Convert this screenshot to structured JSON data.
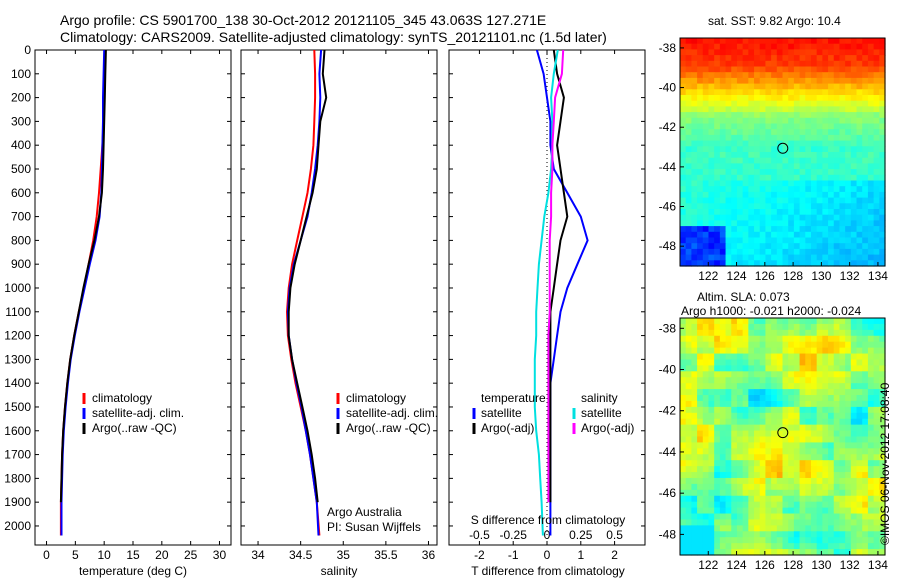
{
  "titles": {
    "line1": "Argo profile: CS 5901700_138 30-Oct-2012 20121105_345 43.063S 127.271E",
    "line2": "Climatology: CARS2009. Satellite-adjusted climatology: synTS_20121101.nc (1.5d later)"
  },
  "colors": {
    "climatology": "#ff0000",
    "satellite": "#0000ff",
    "argo": "#000000",
    "sat_salinity": "#00e0e0",
    "argo_salinity_adj": "#ff00ff"
  },
  "chart_data": [
    {
      "type": "line",
      "name": "temperature",
      "xlabel": "temperature (deg C)",
      "ylabel": "",
      "xlim": [
        -2,
        32
      ],
      "ylim": [
        2080,
        0
      ],
      "xticks": [
        "0",
        "5",
        "10",
        "15",
        "20",
        "25",
        "30"
      ],
      "yticks": [
        "0",
        "100",
        "200",
        "300",
        "400",
        "500",
        "600",
        "700",
        "800",
        "900",
        "1000",
        "1100",
        "1200",
        "1300",
        "1400",
        "1500",
        "1600",
        "1700",
        "1800",
        "1900",
        "2000"
      ],
      "legend": [
        "climatology",
        "satellite-adj. clim.",
        "Argo(..raw -QC)"
      ],
      "series": [
        {
          "name": "climatology",
          "color": "#ff0000",
          "x": [
            10.2,
            10.1,
            10.0,
            9.9,
            9.7,
            9.4,
            9.1,
            8.7,
            8.1,
            7.3,
            6.5,
            5.6,
            4.8,
            4.1,
            3.6,
            3.2,
            2.9,
            2.7,
            2.6,
            2.5,
            2.5
          ],
          "y": [
            0,
            100,
            200,
            300,
            400,
            500,
            600,
            700,
            800,
            900,
            1000,
            1100,
            1200,
            1300,
            1400,
            1500,
            1600,
            1700,
            1800,
            1900,
            2040
          ]
        },
        {
          "name": "satellite-adj. clim.",
          "color": "#0000ff",
          "x": [
            10.0,
            9.9,
            9.8,
            9.8,
            9.7,
            9.6,
            9.5,
            9.2,
            8.5,
            7.5,
            6.6,
            5.7,
            4.9,
            4.2,
            3.7,
            3.3,
            3.0,
            2.8,
            2.7,
            2.6,
            2.6
          ],
          "y": [
            0,
            100,
            200,
            300,
            400,
            500,
            600,
            700,
            800,
            900,
            1000,
            1100,
            1200,
            1300,
            1400,
            1500,
            1600,
            1700,
            1800,
            1900,
            2040
          ]
        },
        {
          "name": "Argo(..raw -QC)",
          "color": "#000000",
          "x": [
            10.3,
            10.2,
            10.1,
            10.0,
            9.9,
            9.8,
            9.6,
            9.1,
            8.3,
            7.3,
            6.4,
            5.6,
            4.8,
            4.1,
            3.6,
            3.2,
            2.9,
            2.7,
            2.6,
            2.5
          ],
          "y": [
            0,
            100,
            200,
            300,
            400,
            500,
            600,
            700,
            800,
            900,
            1000,
            1100,
            1200,
            1300,
            1400,
            1500,
            1600,
            1700,
            1800,
            1900
          ]
        }
      ]
    },
    {
      "type": "line",
      "name": "salinity",
      "xlabel": "salinity",
      "xlim": [
        33.8,
        36.1
      ],
      "ylim": [
        2080,
        0
      ],
      "xticks": [
        "34",
        "34.5",
        "35",
        "35.5",
        "36"
      ],
      "legend": [
        "climatology",
        "satellite-adj. clim.",
        "Argo(..raw -QC)"
      ],
      "annotations": [
        "Argo Australia",
        "PI: Susan Wijffels"
      ],
      "series": [
        {
          "name": "climatology",
          "color": "#ff0000",
          "x": [
            34.66,
            34.67,
            34.67,
            34.66,
            34.65,
            34.62,
            34.58,
            34.52,
            34.46,
            34.4,
            34.36,
            34.34,
            34.35,
            34.39,
            34.44,
            34.5,
            34.56,
            34.61,
            34.65,
            34.69,
            34.72
          ],
          "y": [
            0,
            100,
            200,
            300,
            400,
            500,
            600,
            700,
            800,
            900,
            1000,
            1100,
            1200,
            1300,
            1400,
            1500,
            1600,
            1700,
            1800,
            1900,
            2040
          ]
        },
        {
          "name": "satellite-adj. clim.",
          "color": "#0000ff",
          "x": [
            34.74,
            34.72,
            34.73,
            34.72,
            34.7,
            34.67,
            34.63,
            34.58,
            34.5,
            34.42,
            34.37,
            34.35,
            34.36,
            34.4,
            34.45,
            34.51,
            34.56,
            34.61,
            34.65,
            34.69,
            34.71
          ],
          "y": [
            0,
            100,
            200,
            300,
            400,
            500,
            600,
            700,
            800,
            900,
            1000,
            1100,
            1200,
            1300,
            1400,
            1500,
            1600,
            1700,
            1800,
            1900,
            2040
          ]
        },
        {
          "name": "Argo(..raw -QC)",
          "color": "#000000",
          "x": [
            34.78,
            34.76,
            34.8,
            34.73,
            34.71,
            34.69,
            34.64,
            34.57,
            34.5,
            34.43,
            34.38,
            34.36,
            34.36,
            34.4,
            34.46,
            34.52,
            34.58,
            34.63,
            34.67,
            34.7
          ],
          "y": [
            0,
            100,
            200,
            300,
            400,
            500,
            600,
            700,
            800,
            900,
            1000,
            1100,
            1200,
            1300,
            1400,
            1500,
            1600,
            1700,
            1800,
            1900
          ]
        }
      ]
    },
    {
      "type": "line",
      "name": "differences",
      "xlabel": "T difference from climatology",
      "xlabel_top": "S difference from climatology",
      "xlim": [
        -2.9,
        2.9
      ],
      "ylim": [
        2080,
        0
      ],
      "xticks": [
        "-2",
        "-1",
        "0",
        "1",
        "2"
      ],
      "xticks_s": [
        "-0.5",
        "-0.25",
        "0",
        "0.25",
        "0.5"
      ],
      "legend_temperature": {
        "heading": "temperature",
        "items": [
          "satellite",
          "Argo(-adj)"
        ]
      },
      "legend_salinity": {
        "heading": "salinity",
        "items": [
          "satellite",
          "Argo(-adj)"
        ]
      },
      "series": [
        {
          "name": "temperature satellite",
          "color": "#0000ff",
          "x": [
            -0.3,
            -0.1,
            0.0,
            0.1,
            0.1,
            0.2,
            0.6,
            1.0,
            1.2,
            0.9,
            0.6,
            0.4,
            0.3,
            0.2,
            0.1,
            0.1,
            0.1,
            0.1,
            0.1,
            0.1,
            0.1
          ],
          "y": [
            0,
            100,
            200,
            300,
            400,
            500,
            600,
            700,
            800,
            900,
            1000,
            1100,
            1200,
            1300,
            1400,
            1500,
            1600,
            1700,
            1800,
            1900,
            2040
          ]
        },
        {
          "name": "temperature Argo(-adj)",
          "color": "#000000",
          "x": [
            0.2,
            0.3,
            0.5,
            0.4,
            0.3,
            0.4,
            0.5,
            0.6,
            0.4,
            0.3,
            0.2,
            0.1,
            0.1,
            0.1,
            0.1,
            0.1,
            0.1,
            0.1,
            0.1,
            0.1
          ],
          "y": [
            0,
            100,
            200,
            300,
            400,
            500,
            600,
            700,
            800,
            900,
            1000,
            1100,
            1200,
            1300,
            1400,
            1500,
            1600,
            1700,
            1800,
            1900
          ]
        },
        {
          "name": "salinity satellite",
          "color": "#00e0e0",
          "x": [
            0.08,
            0.05,
            0.03,
            0.04,
            0.04,
            0.03,
            0.01,
            -0.02,
            -0.04,
            -0.06,
            -0.07,
            -0.08,
            -0.08,
            -0.09,
            -0.09,
            -0.09,
            -0.08,
            -0.06,
            -0.05,
            -0.04,
            -0.03
          ],
          "y": [
            0,
            100,
            200,
            300,
            400,
            500,
            600,
            700,
            800,
            900,
            1000,
            1100,
            1200,
            1300,
            1400,
            1500,
            1600,
            1700,
            1800,
            1900,
            2040
          ]
        },
        {
          "name": "salinity Argo(-adj)",
          "color": "#ff00ff",
          "x": [
            0.12,
            0.11,
            0.06,
            0.05,
            0.04,
            0.04,
            0.03,
            0.03,
            0.02,
            0.02,
            0.02,
            0.02,
            0.01,
            0.01,
            0.01,
            0.01,
            0.01,
            0.01,
            0.01,
            0.01
          ],
          "y": [
            0,
            100,
            200,
            300,
            400,
            500,
            600,
            700,
            800,
            900,
            1000,
            1100,
            1200,
            1300,
            1400,
            1500,
            1600,
            1700,
            1800,
            1900
          ]
        }
      ]
    },
    {
      "type": "heatmap",
      "name": "sst-map",
      "title": "sat. SST: 9.82  Argo: 10.4",
      "xlim": [
        120,
        134.5
      ],
      "ylim": [
        -49,
        -37.5
      ],
      "xticks": [
        "122",
        "124",
        "126",
        "128",
        "130",
        "132",
        "134"
      ],
      "yticks": [
        "-38",
        "-40",
        "-42",
        "-44",
        "-46",
        "-48"
      ],
      "marker": {
        "lon": 127.271,
        "lat": -43.063
      }
    },
    {
      "type": "heatmap",
      "name": "sla-map",
      "title_line1": "Altim. SLA: 0.073",
      "title_line2": "Argo h1000: -0.021 h2000: -0.024",
      "xlim": [
        120,
        134.5
      ],
      "ylim": [
        -49,
        -37.5
      ],
      "xticks": [
        "122",
        "124",
        "126",
        "128",
        "130",
        "132",
        "134"
      ],
      "yticks": [
        "-38",
        "-40",
        "-42",
        "-44",
        "-46",
        "-48"
      ],
      "marker": {
        "lon": 127.271,
        "lat": -43.063
      }
    }
  ],
  "stamp": "©IMOS 06-Nov-2012 17:08:40"
}
